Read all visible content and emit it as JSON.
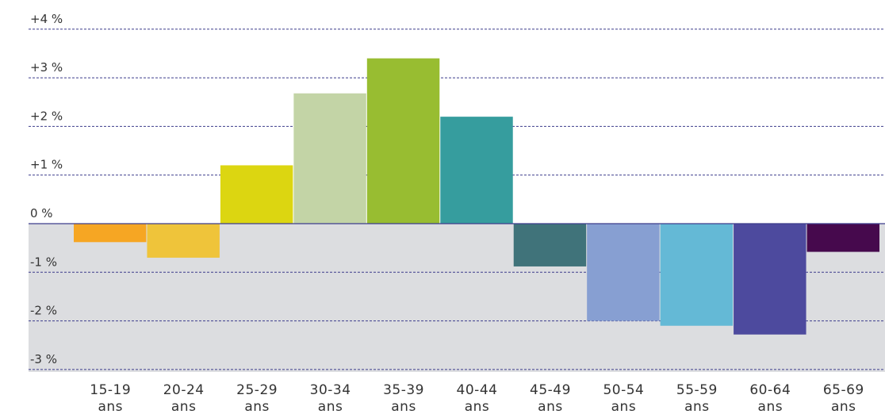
{
  "chart_data": {
    "type": "bar",
    "title": "",
    "xlabel": "",
    "ylabel": "",
    "ylim": [
      -3.05,
      4.35
    ],
    "y_ticks": [
      4,
      3,
      2,
      1,
      0,
      -1,
      -2,
      -3
    ],
    "y_tick_labels": [
      "+4 %",
      "+3 %",
      "+2 %",
      "+1 %",
      "0 %",
      "-1 %",
      "-2 %",
      "-3 %"
    ],
    "grid": true,
    "legend": "none",
    "categories": [
      [
        "15-19",
        "ans"
      ],
      [
        "20-24",
        "ans"
      ],
      [
        "25-29",
        "ans"
      ],
      [
        "30-34",
        "ans"
      ],
      [
        "35-39",
        "ans"
      ],
      [
        "40-44",
        "ans"
      ],
      [
        "45-49",
        "ans"
      ],
      [
        "50-54",
        "ans"
      ],
      [
        "55-59",
        "ans"
      ],
      [
        "60-64",
        "ans"
      ],
      [
        "65-69",
        "ans"
      ]
    ],
    "values": [
      -0.38,
      -0.7,
      1.2,
      2.68,
      3.4,
      2.2,
      -0.88,
      -2.0,
      -2.1,
      -2.28,
      -0.58
    ],
    "colors": [
      "#f6a623",
      "#efc43a",
      "#dcd611",
      "#c3d4a6",
      "#98bd31",
      "#369d9e",
      "#40737a",
      "#879fd2",
      "#64b9d6",
      "#4d4a9e",
      "#46094d"
    ],
    "negative_zone_color": "#dcdde0",
    "grid_color": "#3c3c8c"
  }
}
